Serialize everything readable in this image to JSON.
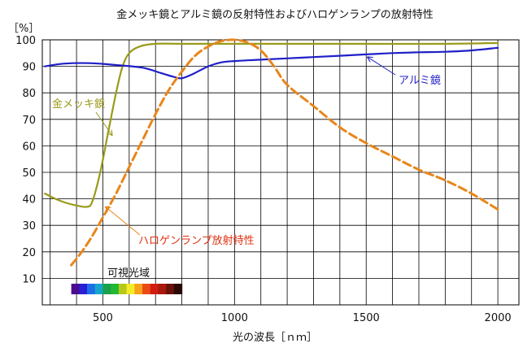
{
  "chart_data": {
    "type": "line",
    "title": "金メッキ鏡とアルミ鏡の反射特性およびハロゲンランプの放射特性",
    "xlabel": "光の波長［ｎｍ］",
    "ylabel": "［%］",
    "xlim": [
      270,
      2080
    ],
    "ylim": [
      0,
      100
    ],
    "x_ticks": [
      500,
      1000,
      1500,
      2000
    ],
    "y_ticks": [
      10,
      20,
      30,
      40,
      50,
      60,
      70,
      80,
      90,
      100
    ],
    "grid": true,
    "series": [
      {
        "name": "金メッキ鏡",
        "color": "#9a9a1a",
        "style": "solid",
        "points": [
          [
            280,
            42
          ],
          [
            320,
            40
          ],
          [
            360,
            38.5
          ],
          [
            400,
            37.5
          ],
          [
            440,
            37
          ],
          [
            460,
            39
          ],
          [
            490,
            50
          ],
          [
            520,
            65
          ],
          [
            550,
            80
          ],
          [
            575,
            90
          ],
          [
            600,
            95
          ],
          [
            640,
            97.5
          ],
          [
            700,
            98.5
          ],
          [
            800,
            98.5
          ],
          [
            900,
            98.5
          ],
          [
            1000,
            98.5
          ],
          [
            1200,
            98.5
          ],
          [
            1500,
            98.5
          ],
          [
            1800,
            98.5
          ],
          [
            2000,
            98.8
          ]
        ]
      },
      {
        "name": "アルミ鏡",
        "color": "#1f1fc8",
        "style": "solid",
        "points": [
          [
            280,
            90
          ],
          [
            350,
            91
          ],
          [
            450,
            91.2
          ],
          [
            550,
            90.5
          ],
          [
            650,
            89.5
          ],
          [
            720,
            87.5
          ],
          [
            770,
            86
          ],
          [
            800,
            85.5
          ],
          [
            840,
            87
          ],
          [
            900,
            90
          ],
          [
            950,
            91.5
          ],
          [
            1000,
            92
          ],
          [
            1100,
            92.5
          ],
          [
            1200,
            93
          ],
          [
            1300,
            93.5
          ],
          [
            1400,
            94
          ],
          [
            1500,
            94.5
          ],
          [
            1600,
            95
          ],
          [
            1700,
            95.3
          ],
          [
            1800,
            95.5
          ],
          [
            1900,
            96
          ],
          [
            2000,
            97
          ]
        ]
      },
      {
        "name": "ハロゲンランプ放射特性",
        "color": "#e8861a",
        "style": "dashed",
        "points": [
          [
            380,
            15
          ],
          [
            420,
            20
          ],
          [
            460,
            26
          ],
          [
            500,
            33
          ],
          [
            550,
            42
          ],
          [
            600,
            52
          ],
          [
            650,
            62
          ],
          [
            700,
            72
          ],
          [
            750,
            81
          ],
          [
            800,
            88
          ],
          [
            850,
            94
          ],
          [
            900,
            97.5
          ],
          [
            950,
            99.5
          ],
          [
            1000,
            100
          ],
          [
            1050,
            99
          ],
          [
            1100,
            96
          ],
          [
            1150,
            90
          ],
          [
            1200,
            83
          ],
          [
            1300,
            75
          ],
          [
            1400,
            67
          ],
          [
            1500,
            61
          ],
          [
            1600,
            56
          ],
          [
            1700,
            51
          ],
          [
            1800,
            47
          ],
          [
            1900,
            42
          ],
          [
            2000,
            36
          ]
        ]
      }
    ],
    "annotations": [
      {
        "text": "金メッキ鏡",
        "color": "#9a9a1a",
        "arrow_to": [
          535,
          64
        ]
      },
      {
        "text": "アルミ鏡",
        "color": "#1f1fc8",
        "arrow_to": [
          1505,
          93.5
        ]
      },
      {
        "text": "ハロゲンランプ放射特性",
        "color": "#e8861a",
        "arrow_to": [
          510,
          37
        ]
      }
    ],
    "spectrum_label": "可視光域",
    "spectrum_colors": [
      "#4a0b8f",
      "#2a1fd4",
      "#1c6fe8",
      "#16a6c9",
      "#1aa14a",
      "#22b833",
      "#b8c81a",
      "#f4ec26",
      "#f6a21a",
      "#ea4a14",
      "#d21c12",
      "#a8190e",
      "#6a1208",
      "#2a0905"
    ]
  }
}
